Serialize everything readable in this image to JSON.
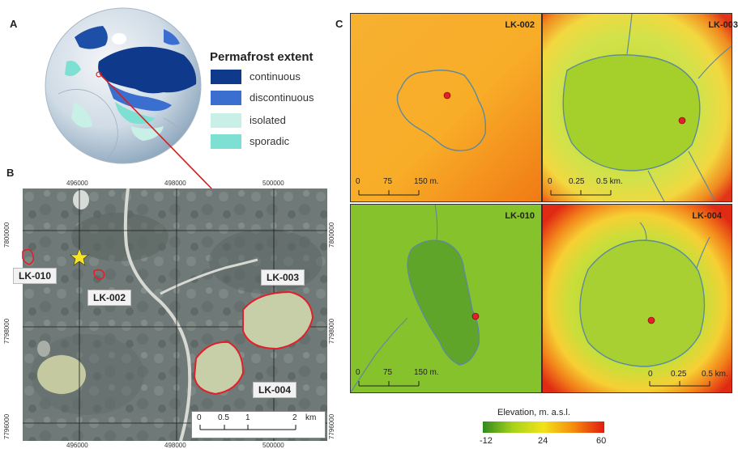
{
  "panel_letters": {
    "a": "A",
    "b": "B",
    "c": "C"
  },
  "permafrost_legend": {
    "title": "Permafrost extent",
    "items": [
      {
        "label": "continuous",
        "color": "#0f3a8c"
      },
      {
        "label": "discontinuous",
        "color": "#3a6fcf"
      },
      {
        "label": "isolated",
        "color": "#c8f0e6"
      },
      {
        "label": "sporadic",
        "color": "#7ee0d2"
      }
    ]
  },
  "map_b": {
    "x_ticks": [
      "496000",
      "498000",
      "500000"
    ],
    "x_ticks_bottom": [
      "496000",
      "498000",
      "500000"
    ],
    "y_ticks_left": [
      "7800000",
      "7798000",
      "7796000"
    ],
    "y_ticks_right": [
      "7800000",
      "7798000",
      "7796000"
    ],
    "lake_labels": [
      "LK-010",
      "LK-002",
      "LK-003",
      "LK-004"
    ],
    "scale": {
      "ticks": [
        "0",
        "0.5",
        "1",
        "2"
      ],
      "unit": "km"
    }
  },
  "panels_c": [
    {
      "tag": "LK-002",
      "scale_ticks": [
        "0",
        "75",
        "150 m."
      ]
    },
    {
      "tag": "LK-003",
      "scale_ticks": [
        "0",
        "0.25",
        "0.5 km."
      ]
    },
    {
      "tag": "LK-010",
      "scale_ticks": [
        "0",
        "75",
        "150 m."
      ]
    },
    {
      "tag": "LK-004",
      "scale_ticks": [
        "0",
        "0.25",
        "0.5 km."
      ]
    }
  ],
  "colorbar": {
    "title": "Elevation, m. a.s.l.",
    "ticks": [
      "-12",
      "24",
      "60"
    ],
    "colors": [
      "#2f8a1e",
      "#a8d31a",
      "#f2e21a",
      "#f58a0e",
      "#e01a10"
    ]
  }
}
